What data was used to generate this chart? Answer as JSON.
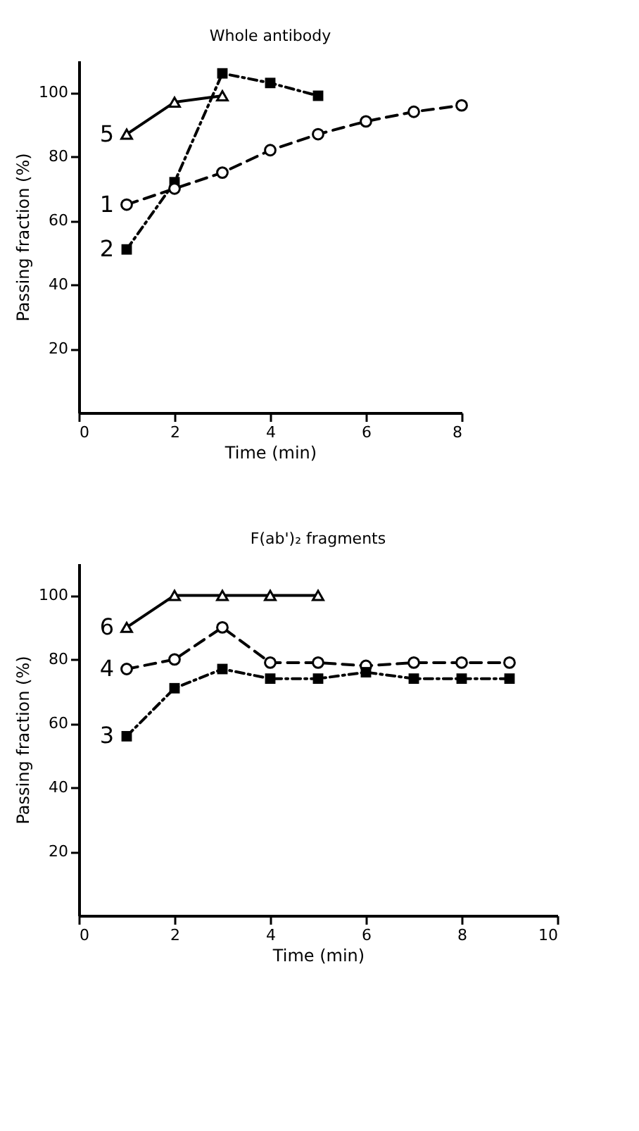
{
  "chart_data": [
    {
      "type": "line",
      "title": "Whole antibody",
      "xlabel": "Time (min)",
      "ylabel": "Passing fraction (%)",
      "xlim": [
        0,
        8
      ],
      "xticks": [
        0,
        2,
        4,
        6,
        8
      ],
      "ylim": [
        0,
        110
      ],
      "yticks": [
        20,
        40,
        60,
        80,
        100
      ],
      "grid": false,
      "legend": false,
      "series": [
        {
          "name": "5",
          "color": "#000000",
          "marker": "triangle",
          "line_style": "solid",
          "x": [
            1,
            2,
            3
          ],
          "values": [
            87,
            97,
            99
          ]
        },
        {
          "name": "2",
          "color": "#000000",
          "marker": "square",
          "line_style": "dotted",
          "x": [
            1,
            2,
            3,
            4,
            5
          ],
          "values": [
            51,
            72,
            106,
            103,
            99
          ]
        },
        {
          "name": "1",
          "color": "#000000",
          "marker": "circle",
          "line_style": "dashed",
          "x": [
            1,
            2,
            3,
            4,
            5,
            6,
            7,
            8
          ],
          "values": [
            65,
            70,
            75,
            82,
            87,
            91,
            94,
            96
          ]
        }
      ]
    },
    {
      "type": "line",
      "title": "F(ab')₂ fragments",
      "xlabel": "Time (min)",
      "ylabel": "Passing fraction (%)",
      "xlim": [
        0,
        10
      ],
      "xticks": [
        0,
        2,
        4,
        6,
        8,
        10
      ],
      "ylim": [
        0,
        110
      ],
      "yticks": [
        20,
        40,
        60,
        80,
        100
      ],
      "grid": false,
      "legend": false,
      "series": [
        {
          "name": "6",
          "color": "#000000",
          "marker": "triangle",
          "line_style": "solid",
          "x": [
            1,
            2,
            3,
            4,
            5
          ],
          "values": [
            90,
            100,
            100,
            100,
            100
          ]
        },
        {
          "name": "4",
          "color": "#000000",
          "marker": "circle",
          "line_style": "dashed",
          "x": [
            1,
            2,
            3,
            4,
            5,
            6,
            7,
            8,
            9
          ],
          "values": [
            77,
            80,
            90,
            79,
            79,
            78,
            79,
            79,
            79
          ]
        },
        {
          "name": "3",
          "color": "#000000",
          "marker": "square",
          "line_style": "dotted",
          "x": [
            1,
            2,
            3,
            4,
            5,
            6,
            7,
            8,
            9
          ],
          "values": [
            56,
            71,
            77,
            74,
            74,
            76,
            74,
            74,
            74
          ]
        }
      ]
    }
  ]
}
